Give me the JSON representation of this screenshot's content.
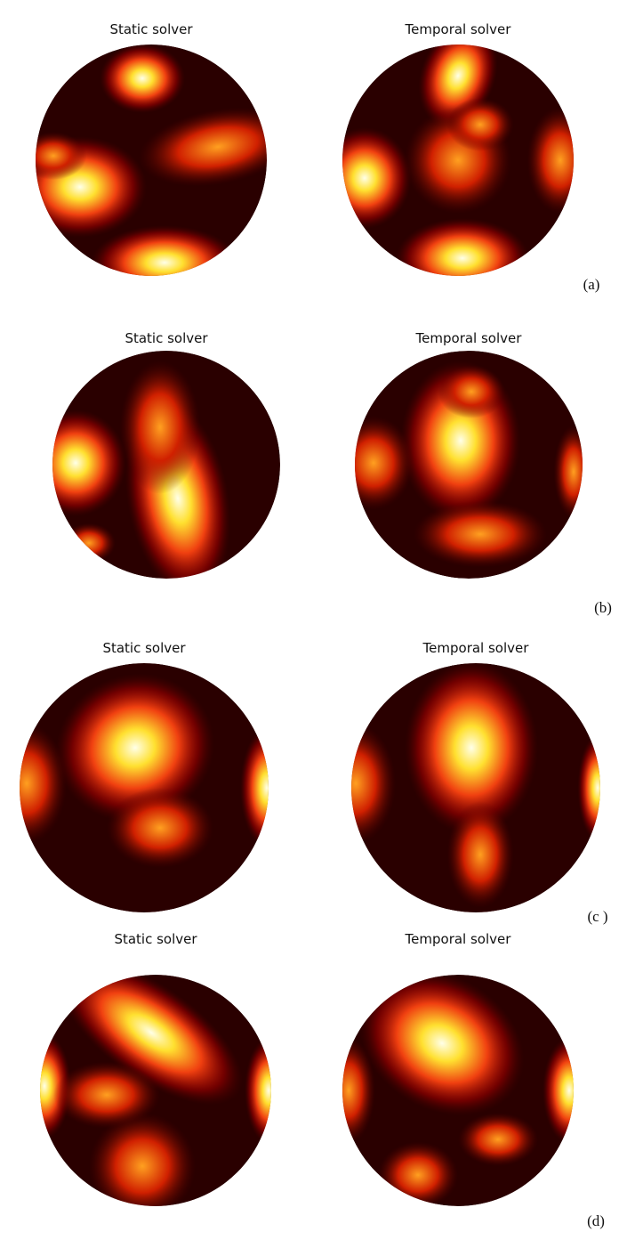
{
  "panels": [
    {
      "left_title": "Static solver",
      "right_title": "Temporal solver",
      "label": "(a)"
    },
    {
      "left_title": "Static solver",
      "right_title": "Temporal solver",
      "label": "(b)"
    },
    {
      "left_title": "Static solver",
      "right_title": "Temporal solver",
      "label": "(c )"
    },
    {
      "left_title": "Static solver",
      "right_title": "Temporal solver",
      "label": "(d)"
    }
  ]
}
